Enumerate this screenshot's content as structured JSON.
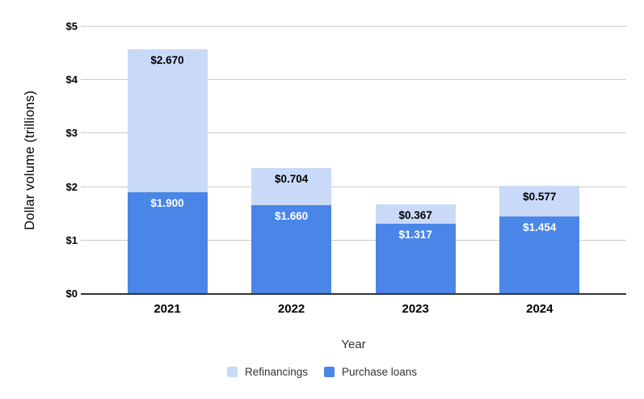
{
  "chart_data": {
    "type": "bar",
    "stacked": true,
    "title": "",
    "xlabel": "Year",
    "ylabel": "Dollar volume (trillions)",
    "categories": [
      "2021",
      "2022",
      "2023",
      "2024"
    ],
    "series": [
      {
        "name": "Refinancings",
        "color": "#c9daf8",
        "label_color": "#000000",
        "values": [
          2.67,
          0.704,
          0.367,
          0.577
        ],
        "labels": [
          "$2.670",
          "$0.704",
          "$0.367",
          "$0.577"
        ]
      },
      {
        "name": "Purchase loans",
        "color": "#4a86e8",
        "label_color": "#ffffff",
        "values": [
          1.9,
          1.66,
          1.317,
          1.454
        ],
        "labels": [
          "$1.900",
          "$1.660",
          "$1.317",
          "$1.454"
        ]
      }
    ],
    "ylim": [
      0,
      5
    ],
    "yticks": [
      {
        "value": 0,
        "label": "$0"
      },
      {
        "value": 1,
        "label": "$1"
      },
      {
        "value": 2,
        "label": "$2"
      },
      {
        "value": 3,
        "label": "$3"
      },
      {
        "value": 4,
        "label": "$4"
      },
      {
        "value": 5,
        "label": "$5"
      }
    ],
    "grid": true,
    "legend_position": "bottom",
    "gridline_color": "#cccccc",
    "axis_line_color": "#333333"
  }
}
